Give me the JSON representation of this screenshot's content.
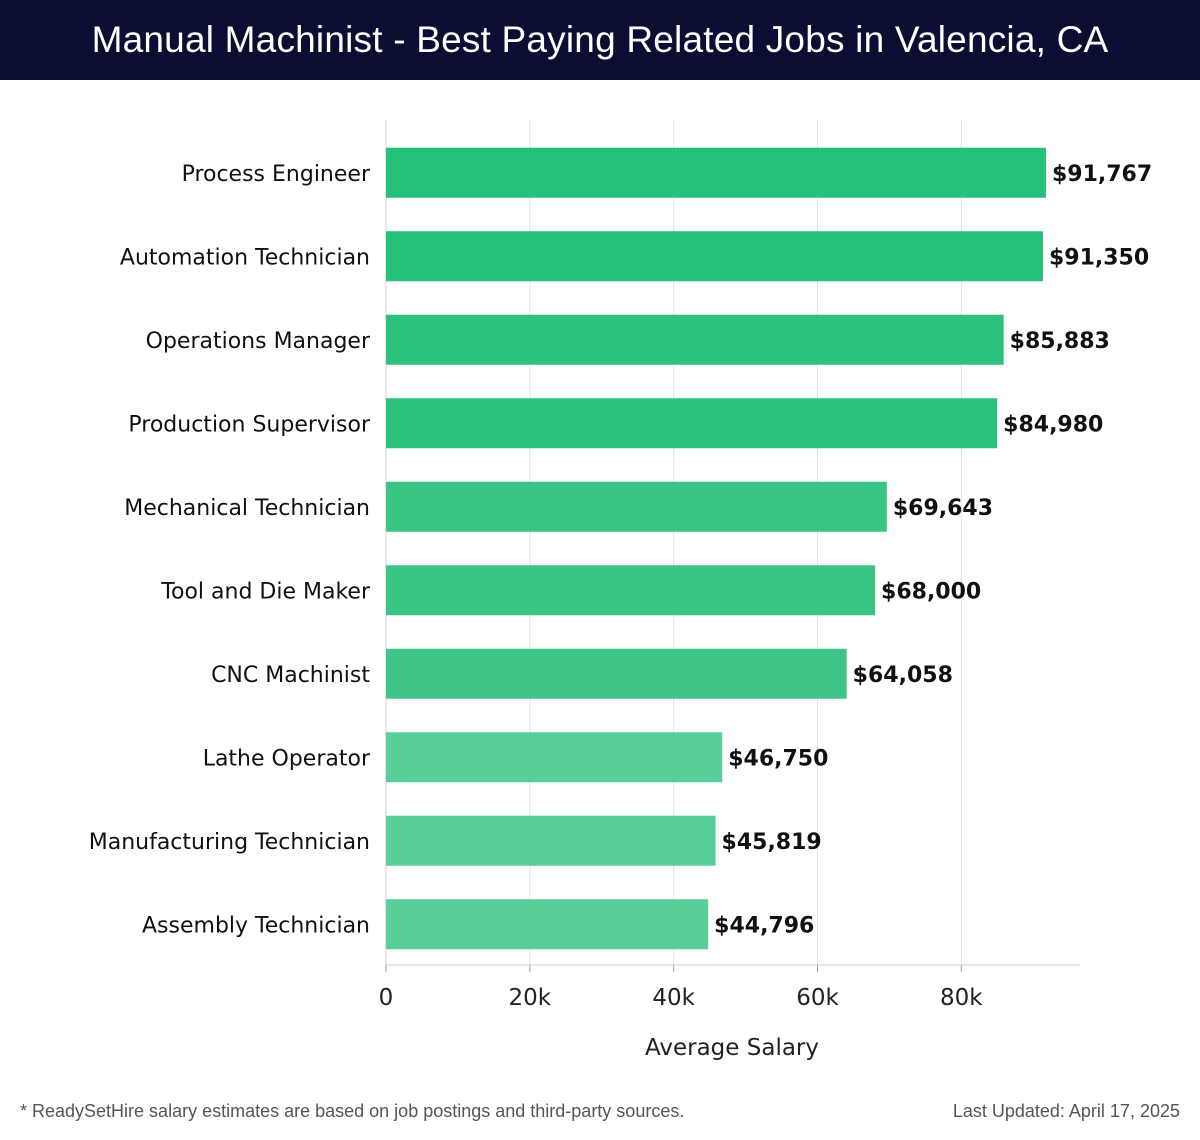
{
  "header": {
    "title": "Manual Machinist - Best Paying Related Jobs in Valencia, CA"
  },
  "chart_data": {
    "type": "bar",
    "orientation": "horizontal",
    "title": "Manual Machinist - Best Paying Related Jobs in Valencia, CA",
    "xlabel": "Average Salary",
    "ylabel": "",
    "xlim": [
      0,
      96500
    ],
    "grid": true,
    "x_ticks": [
      {
        "value": 0,
        "label": "0"
      },
      {
        "value": 20000,
        "label": "20k"
      },
      {
        "value": 40000,
        "label": "40k"
      },
      {
        "value": 60000,
        "label": "60k"
      },
      {
        "value": 80000,
        "label": "80k"
      }
    ],
    "categories": [
      "Process Engineer",
      "Automation Technician",
      "Operations Manager",
      "Production Supervisor",
      "Mechanical Technician",
      "Tool and Die Maker",
      "CNC Machinist",
      "Lathe Operator",
      "Manufacturing Technician",
      "Assembly Technician"
    ],
    "values": [
      91767,
      91350,
      85883,
      84980,
      69643,
      68000,
      64058,
      46750,
      45819,
      44796
    ],
    "value_labels": [
      "$91,767",
      "$91,350",
      "$85,883",
      "$84,980",
      "$69,643",
      "$68,000",
      "$64,058",
      "$46,750",
      "$45,819",
      "$44,796"
    ],
    "bar_colors": [
      "#27c07a",
      "#27c07a",
      "#2cc17c",
      "#2cc17c",
      "#3bc584",
      "#3bc584",
      "#40c487",
      "#58cf98",
      "#58cf98",
      "#58cf98"
    ]
  },
  "footer": {
    "note": "* ReadySetHire salary estimates are based on job postings and third-party sources.",
    "updated": "Last Updated: April 17, 2025"
  }
}
